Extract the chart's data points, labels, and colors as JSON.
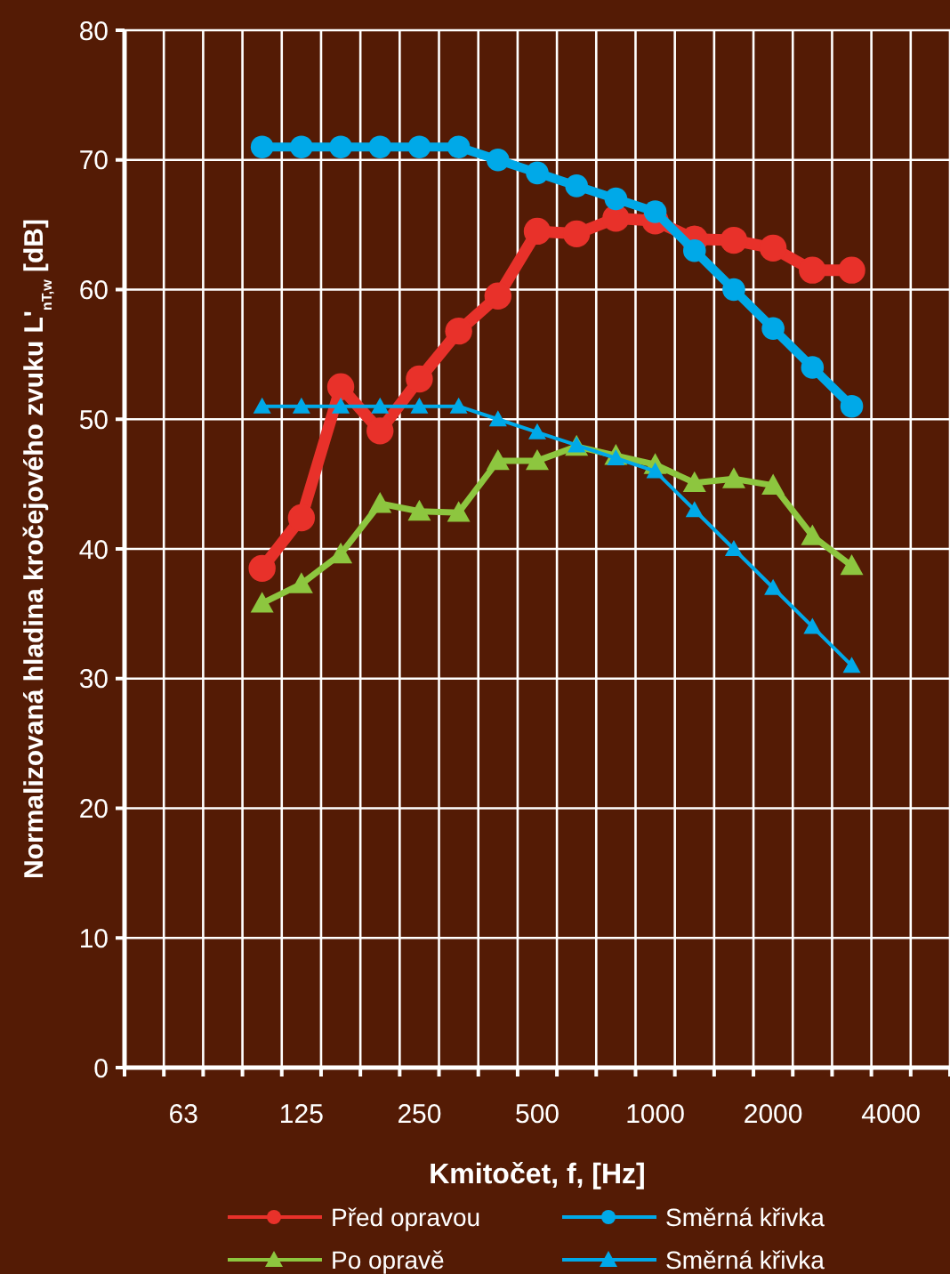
{
  "chart_data": {
    "type": "line",
    "xlabel": "Kmitočet, f, [Hz]",
    "ylabel": "Normalizovaná hladina kročejového zvuku L'$_{nT,w}$ [dB]",
    "categories": [
      null,
      "63",
      null,
      null,
      "125",
      null,
      null,
      "250",
      null,
      null,
      "500",
      null,
      null,
      "1000",
      null,
      null,
      "2000",
      null,
      null,
      "4000",
      null
    ],
    "ylim": [
      0,
      80
    ],
    "yticks": [
      0,
      10,
      20,
      30,
      40,
      50,
      60,
      70,
      80
    ],
    "grid": true,
    "legend": "bottom",
    "series": [
      {
        "name": "Před opravou",
        "color": "#e8312a",
        "marker": "circle",
        "values": [
          null,
          null,
          null,
          38.5,
          42.4,
          52.5,
          49.1,
          53.1,
          56.8,
          59.5,
          64.5,
          64.3,
          65.5,
          65.3,
          63.9,
          63.8,
          63.2,
          61.5,
          61.5,
          null,
          null
        ]
      },
      {
        "name": "Směrná křivka",
        "color": "#00a9e8",
        "marker": "circle",
        "values": [
          null,
          null,
          null,
          71,
          71,
          71,
          71,
          71,
          71,
          70,
          69,
          68,
          67,
          66,
          63,
          60,
          57,
          54,
          51,
          null,
          null
        ]
      },
      {
        "name": "Po opravě",
        "color": "#8dc63f",
        "marker": "triangle",
        "values": [
          null,
          null,
          null,
          35.8,
          37.3,
          39.6,
          43.5,
          42.9,
          42.8,
          46.8,
          46.8,
          47.9,
          47.2,
          46.5,
          45.1,
          45.4,
          44.9,
          41.0,
          38.7,
          null,
          null
        ]
      },
      {
        "name": "Směrná křivka",
        "color": "#00a9e8",
        "marker": "triangle",
        "values": [
          null,
          null,
          null,
          51,
          51,
          51,
          51,
          51,
          51,
          50,
          49,
          48,
          47,
          46,
          43,
          40,
          37,
          34,
          31,
          null,
          null
        ]
      }
    ]
  }
}
